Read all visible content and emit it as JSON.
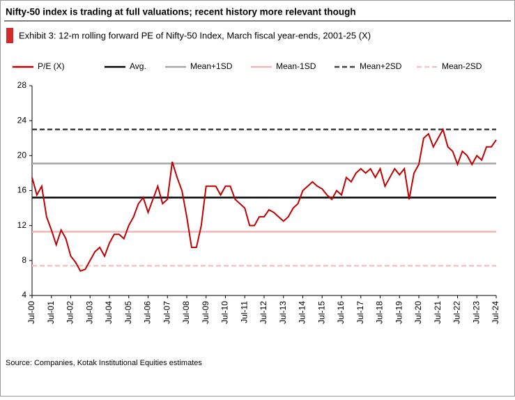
{
  "chart_data": {
    "type": "line",
    "title": "Nifty-50 index is trading at full valuations; recent history more relevant though",
    "subtitle": "Exhibit 3: 12-m rolling forward PE of Nifty-50 Index, March fiscal year-ends, 2001-25 (X)",
    "source": "Source: Companies, Kotak Institutional Equities estimates",
    "categories": [
      "Jul-00",
      null,
      null,
      null,
      "Jul-01",
      null,
      null,
      null,
      "Jul-02",
      null,
      null,
      null,
      "Jul-03",
      null,
      null,
      null,
      "Jul-04",
      null,
      null,
      null,
      "Jul-05",
      null,
      null,
      null,
      "Jul-06",
      null,
      null,
      null,
      "Jul-07",
      null,
      null,
      null,
      "Jul-08",
      null,
      null,
      null,
      "Jul-09",
      null,
      null,
      null,
      "Jul-10",
      null,
      null,
      null,
      "Jul-11",
      null,
      null,
      null,
      "Jul-12",
      null,
      null,
      null,
      "Jul-13",
      null,
      null,
      null,
      "Jul-14",
      null,
      null,
      null,
      "Jul-15",
      null,
      null,
      null,
      "Jul-16",
      null,
      null,
      null,
      "Jul-17",
      null,
      null,
      null,
      "Jul-18",
      null,
      null,
      null,
      "Jul-19",
      null,
      null,
      null,
      "Jul-20",
      null,
      null,
      null,
      "Jul-21",
      null,
      null,
      null,
      "Jul-22",
      null,
      null,
      null,
      "Jul-23",
      null,
      null,
      null,
      "Jul-24"
    ],
    "series": [
      {
        "name": "P/E (X)",
        "color": "#c00000",
        "values": [
          17.5,
          15.5,
          16.5,
          13,
          11.5,
          9.8,
          11.5,
          10.5,
          8.5,
          7.8,
          6.8,
          7,
          8,
          9,
          9.5,
          8.5,
          10,
          11,
          11,
          10.5,
          12,
          13,
          14.5,
          15.2,
          13.5,
          15,
          16.5,
          14.5,
          15,
          19.3,
          17.5,
          16,
          13,
          9.5,
          9.5,
          12,
          16.5,
          16.5,
          16.5,
          15.5,
          16.5,
          16.5,
          15,
          14.5,
          14,
          12,
          12,
          13,
          13,
          13.8,
          13.5,
          13,
          12.5,
          13,
          14,
          14.5,
          16,
          16.5,
          17,
          16.5,
          16.2,
          15.5,
          15,
          16,
          15.5,
          17.5,
          17,
          18,
          18.5,
          18,
          18.5,
          17.5,
          18.5,
          16.5,
          17.5,
          18.5,
          17.8,
          18.5,
          15,
          18,
          19,
          22,
          22.5,
          21,
          22,
          23,
          21,
          20.5,
          19,
          20.5,
          20,
          19,
          20,
          19.5,
          21,
          21,
          21.8
        ]
      }
    ],
    "reference_lines": [
      {
        "name": "Avg.",
        "value": 15.2,
        "color": "#000000",
        "dashed": false
      },
      {
        "name": "Mean+1SD",
        "value": 19.1,
        "color": "#a6a6a6",
        "dashed": false
      },
      {
        "name": "Mean-1SD",
        "value": 11.3,
        "color": "#f2b3b3",
        "dashed": false
      },
      {
        "name": "Mean+2SD",
        "value": 23.0,
        "color": "#404040",
        "dashed": true
      },
      {
        "name": "Mean-2SD",
        "value": 7.4,
        "color": "#f7c4c4",
        "dashed": true
      }
    ],
    "ylim": [
      4,
      28
    ],
    "yticks": [
      4,
      8,
      12,
      16,
      20,
      24,
      28
    ]
  }
}
